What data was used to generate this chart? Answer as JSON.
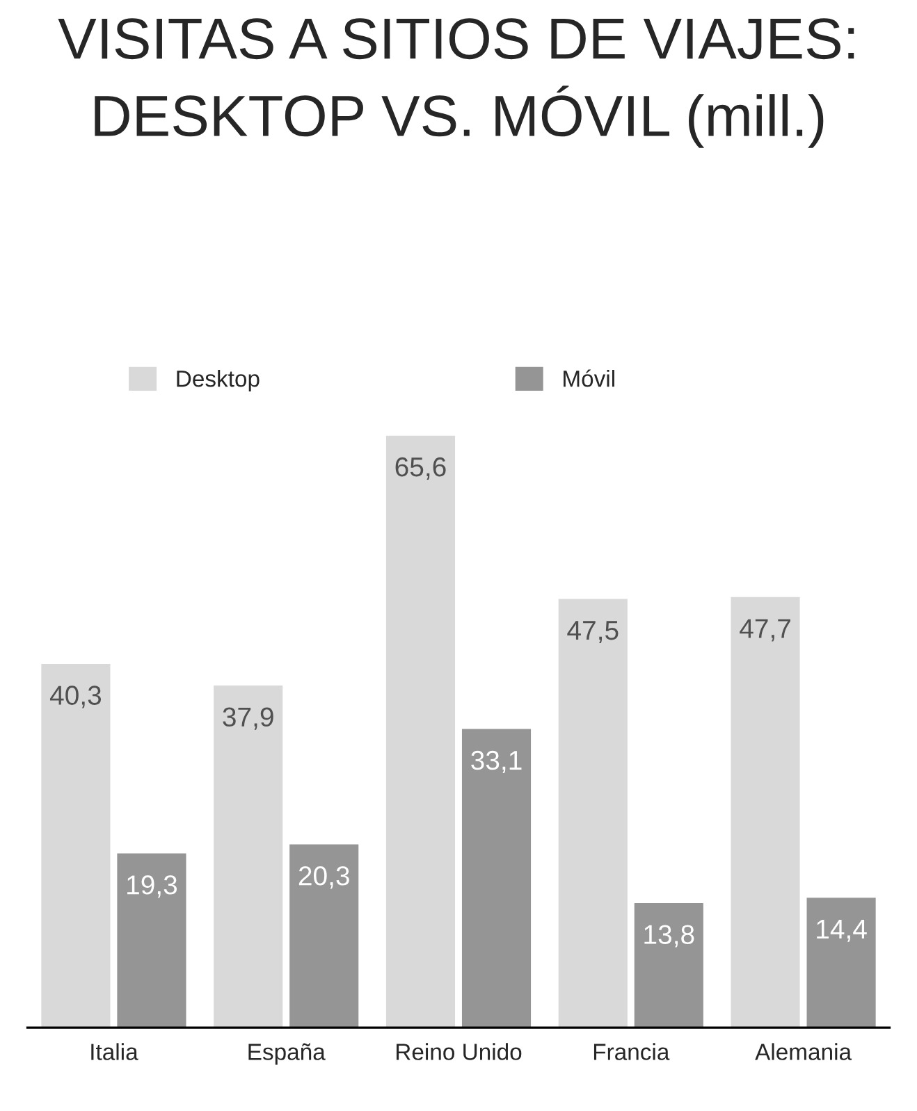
{
  "chart_data": {
    "type": "bar",
    "title": "VISITAS A SITIOS DE VIAJES:\nDESKTOP VS. MÓVIL (mill.)",
    "categories": [
      "Italia",
      "España",
      "Reino Unido",
      "Francia",
      "Alemania"
    ],
    "series": [
      {
        "name": "Desktop",
        "color": "#d9d9d9",
        "values": [
          40.3,
          37.9,
          65.6,
          47.5,
          47.7
        ],
        "value_labels": [
          "40,3",
          "37,9",
          "65,6",
          "47,5",
          "47,7"
        ]
      },
      {
        "name": "Móvil",
        "color": "#959595",
        "values": [
          19.3,
          20.3,
          33.1,
          13.8,
          14.4
        ],
        "value_labels": [
          "19,3",
          "20,3",
          "33,1",
          "13,8",
          "14,4"
        ]
      }
    ],
    "legend": "top"
  }
}
